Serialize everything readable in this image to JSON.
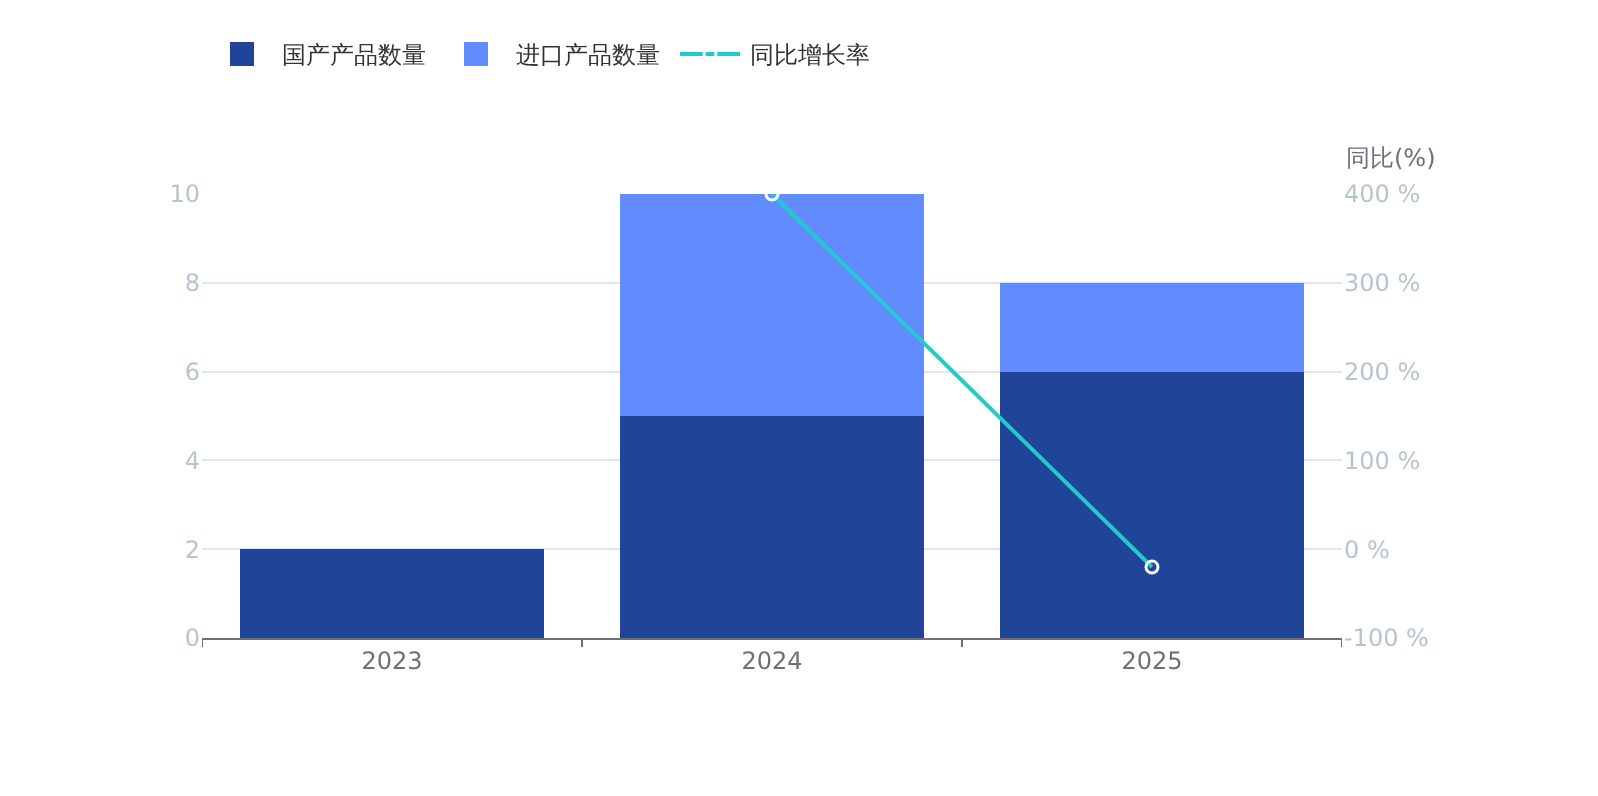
{
  "chart_data": {
    "type": "bar",
    "stacked": true,
    "categories": [
      "2023",
      "2024",
      "2025"
    ],
    "series": [
      {
        "name": "国产产品数量",
        "color": "#1f4498",
        "values": [
          2,
          5,
          6
        ]
      },
      {
        "name": "进口产品数量",
        "color": "#628bfd",
        "values": [
          0,
          5,
          2
        ]
      },
      {
        "name": "同比增长率",
        "type": "line",
        "axis": "y2",
        "color": "#1fcbcb",
        "values": [
          null,
          400,
          -20
        ]
      }
    ],
    "ylim": [
      0,
      10
    ],
    "yticks": [
      0,
      2,
      4,
      6,
      8,
      10
    ],
    "y2label": "同比(%)",
    "y2lim": [
      -100,
      400
    ],
    "y2ticks": [
      {
        "value": -100,
        "label": "-100 %"
      },
      {
        "value": 0,
        "label": "0 %"
      },
      {
        "value": 100,
        "label": "100 %"
      },
      {
        "value": 200,
        "label": "200 %"
      },
      {
        "value": 300,
        "label": "300 %"
      },
      {
        "value": 400,
        "label": "400 %"
      }
    ],
    "grid": "y",
    "legend": "top left",
    "marker": "circle",
    "line_style": "solid"
  }
}
